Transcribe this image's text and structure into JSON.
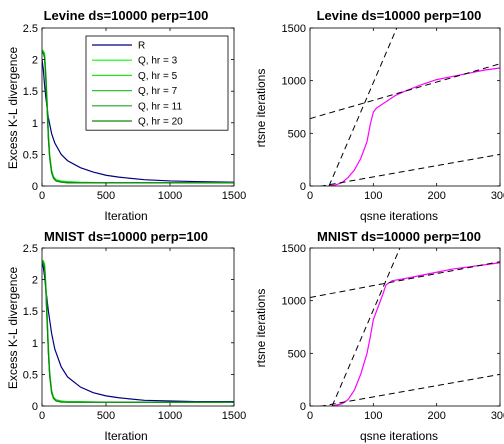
{
  "chart_data": [
    {
      "type": "line",
      "title": "Levine ds=10000 perp=100",
      "xlabel": "Iteration",
      "ylabel": "Excess K-L divergence",
      "xlim": [
        0,
        1500
      ],
      "ylim": [
        0,
        2.5
      ],
      "xticks": [
        0,
        500,
        1000,
        1500
      ],
      "yticks": [
        0,
        0.5,
        1,
        1.5,
        2,
        2.5
      ],
      "legend": {
        "position": "top-right",
        "entries": [
          "R",
          "Q, hr = 3",
          "Q, hr = 5",
          "Q, hr = 7",
          "Q, hr = 11",
          "Q, hr = 20"
        ]
      },
      "series": [
        {
          "name": "R",
          "color": "#000080",
          "x": [
            0,
            10,
            20,
            30,
            50,
            75,
            100,
            150,
            200,
            300,
            400,
            500,
            600,
            800,
            1000,
            1200,
            1500
          ],
          "y": [
            2.0,
            1.85,
            1.6,
            1.4,
            1.08,
            0.83,
            0.68,
            0.5,
            0.4,
            0.29,
            0.22,
            0.17,
            0.14,
            0.1,
            0.08,
            0.07,
            0.06
          ]
        },
        {
          "name": "Q, hr = 3",
          "color": "#00ff00",
          "x": [
            0,
            10,
            20,
            30,
            40,
            50,
            60,
            75,
            90,
            110,
            150,
            200,
            300,
            500,
            1000,
            1500
          ],
          "y": [
            2.15,
            2.14,
            2.1,
            1.8,
            1.35,
            0.85,
            0.5,
            0.25,
            0.15,
            0.1,
            0.08,
            0.07,
            0.06,
            0.05,
            0.05,
            0.05
          ]
        },
        {
          "name": "Q, hr = 5",
          "color": "#22e022",
          "x": [
            0,
            10,
            20,
            30,
            40,
            50,
            60,
            75,
            90,
            110,
            150,
            200,
            300,
            500,
            1000,
            1500
          ],
          "y": [
            2.14,
            2.13,
            2.08,
            1.75,
            1.3,
            0.8,
            0.48,
            0.24,
            0.14,
            0.09,
            0.07,
            0.06,
            0.05,
            0.05,
            0.05,
            0.05
          ]
        },
        {
          "name": "Q, hr = 7",
          "color": "#30c030",
          "x": [
            0,
            10,
            20,
            30,
            40,
            50,
            60,
            75,
            90,
            110,
            150,
            200,
            300,
            500,
            1000,
            1500
          ],
          "y": [
            2.13,
            2.12,
            2.06,
            1.72,
            1.27,
            0.78,
            0.46,
            0.23,
            0.13,
            0.09,
            0.07,
            0.06,
            0.05,
            0.05,
            0.05,
            0.05
          ]
        },
        {
          "name": "Q, hr = 11",
          "color": "#1fa51f",
          "x": [
            0,
            10,
            20,
            30,
            40,
            50,
            60,
            75,
            90,
            110,
            150,
            200,
            300,
            500,
            1000,
            1500
          ],
          "y": [
            2.12,
            2.11,
            2.05,
            1.7,
            1.25,
            0.76,
            0.45,
            0.22,
            0.13,
            0.08,
            0.06,
            0.06,
            0.05,
            0.05,
            0.05,
            0.05
          ]
        },
        {
          "name": "Q, hr = 20",
          "color": "#0b8a0b",
          "x": [
            0,
            10,
            20,
            30,
            40,
            50,
            60,
            75,
            90,
            110,
            150,
            200,
            300,
            500,
            1000,
            1500
          ],
          "y": [
            2.11,
            2.1,
            2.03,
            1.68,
            1.22,
            0.74,
            0.44,
            0.21,
            0.12,
            0.08,
            0.06,
            0.05,
            0.05,
            0.05,
            0.05,
            0.05
          ]
        }
      ]
    },
    {
      "type": "line",
      "title": "Levine ds=10000 perp=100",
      "xlabel": "qsne iterations",
      "ylabel": "rtsne iterations",
      "xlim": [
        0,
        300
      ],
      "ylim": [
        0,
        1500
      ],
      "xticks": [
        0,
        100,
        200,
        300
      ],
      "yticks": [
        0,
        500,
        1000,
        1500
      ],
      "series": [
        {
          "color": "#ff00ff",
          "style": "solid",
          "x": [
            30,
            40,
            50,
            60,
            70,
            80,
            90,
            95,
            100,
            105,
            110,
            120,
            135,
            150,
            175,
            200,
            225,
            250,
            275,
            300
          ],
          "y": [
            0,
            10,
            30,
            80,
            150,
            260,
            420,
            580,
            700,
            740,
            760,
            800,
            860,
            900,
            960,
            1010,
            1040,
            1070,
            1100,
            1120
          ]
        },
        {
          "color": "#000000",
          "style": "dashed",
          "x": [
            30,
            137
          ],
          "y": [
            0,
            1500
          ]
        },
        {
          "color": "#000000",
          "style": "dashed",
          "x": [
            0,
            300
          ],
          "y": [
            640,
            1160
          ]
        },
        {
          "color": "#000000",
          "style": "dashed",
          "x": [
            0,
            300
          ],
          "y": [
            -20,
            300
          ]
        }
      ]
    },
    {
      "type": "line",
      "title": "MNIST ds=10000 perp=100",
      "xlabel": "Iteration",
      "ylabel": "Excess K-L divergence",
      "xlim": [
        0,
        1500
      ],
      "ylim": [
        0,
        2.5
      ],
      "xticks": [
        0,
        500,
        1000,
        1500
      ],
      "yticks": [
        0,
        0.5,
        1,
        1.5,
        2,
        2.5
      ],
      "series": [
        {
          "name": "R",
          "color": "#000080",
          "x": [
            0,
            10,
            20,
            30,
            50,
            75,
            100,
            150,
            200,
            300,
            400,
            500,
            600,
            800,
            1000,
            1200,
            1500
          ],
          "y": [
            2.25,
            2.2,
            2.05,
            1.85,
            1.5,
            1.15,
            0.9,
            0.62,
            0.46,
            0.3,
            0.21,
            0.16,
            0.13,
            0.09,
            0.08,
            0.07,
            0.07
          ]
        },
        {
          "name": "Q, hr = 3",
          "color": "#00ff00",
          "x": [
            0,
            10,
            20,
            30,
            40,
            50,
            60,
            75,
            90,
            110,
            150,
            200,
            300,
            500,
            1000,
            1500
          ],
          "y": [
            2.3,
            2.3,
            2.25,
            1.95,
            1.45,
            0.95,
            0.55,
            0.25,
            0.14,
            0.1,
            0.08,
            0.07,
            0.07,
            0.06,
            0.06,
            0.06
          ]
        },
        {
          "name": "Q, hr = 5",
          "color": "#22e022",
          "x": [
            0,
            10,
            20,
            30,
            40,
            50,
            60,
            75,
            90,
            110,
            150,
            200,
            300,
            500,
            1000,
            1500
          ],
          "y": [
            2.3,
            2.29,
            2.23,
            1.9,
            1.4,
            0.9,
            0.52,
            0.24,
            0.13,
            0.09,
            0.07,
            0.07,
            0.06,
            0.06,
            0.06,
            0.06
          ]
        },
        {
          "name": "Q, hr = 7",
          "color": "#30c030",
          "x": [
            0,
            10,
            20,
            30,
            40,
            50,
            60,
            75,
            90,
            110,
            150,
            200,
            300,
            500,
            1000,
            1500
          ],
          "y": [
            2.29,
            2.28,
            2.21,
            1.87,
            1.37,
            0.87,
            0.5,
            0.23,
            0.13,
            0.09,
            0.07,
            0.06,
            0.06,
            0.06,
            0.06,
            0.06
          ]
        },
        {
          "name": "Q, hr = 11",
          "color": "#1fa51f",
          "x": [
            0,
            10,
            20,
            30,
            40,
            50,
            60,
            75,
            90,
            110,
            150,
            200,
            300,
            500,
            1000,
            1500
          ],
          "y": [
            2.28,
            2.27,
            2.2,
            1.85,
            1.35,
            0.85,
            0.49,
            0.22,
            0.12,
            0.08,
            0.07,
            0.06,
            0.06,
            0.06,
            0.06,
            0.06
          ]
        },
        {
          "name": "Q, hr = 20",
          "color": "#0b8a0b",
          "x": [
            0,
            10,
            20,
            30,
            40,
            50,
            60,
            75,
            90,
            110,
            150,
            200,
            300,
            500,
            1000,
            1500
          ],
          "y": [
            2.27,
            2.26,
            2.18,
            1.82,
            1.32,
            0.83,
            0.47,
            0.21,
            0.12,
            0.08,
            0.06,
            0.06,
            0.06,
            0.06,
            0.06,
            0.06
          ]
        }
      ]
    },
    {
      "type": "line",
      "title": "MNIST ds=10000 perp=100",
      "xlabel": "qsne iterations",
      "ylabel": "rtsne iterations",
      "xlim": [
        0,
        300
      ],
      "ylim": [
        0,
        1500
      ],
      "xticks": [
        0,
        100,
        200,
        300
      ],
      "yticks": [
        0,
        500,
        1000,
        1500
      ],
      "series": [
        {
          "color": "#ff00ff",
          "style": "solid",
          "x": [
            35,
            50,
            60,
            70,
            80,
            90,
            95,
            100,
            105,
            110,
            115,
            120,
            130,
            150,
            175,
            200,
            225,
            250,
            275,
            300
          ],
          "y": [
            0,
            20,
            60,
            150,
            300,
            500,
            650,
            820,
            900,
            980,
            1060,
            1150,
            1190,
            1210,
            1240,
            1270,
            1300,
            1320,
            1340,
            1360
          ]
        },
        {
          "color": "#000000",
          "style": "dashed",
          "x": [
            35,
            142
          ],
          "y": [
            0,
            1500
          ]
        },
        {
          "color": "#000000",
          "style": "dashed",
          "x": [
            0,
            300
          ],
          "y": [
            1030,
            1370
          ]
        },
        {
          "color": "#000000",
          "style": "dashed",
          "x": [
            0,
            300
          ],
          "y": [
            -20,
            300
          ]
        }
      ]
    }
  ]
}
